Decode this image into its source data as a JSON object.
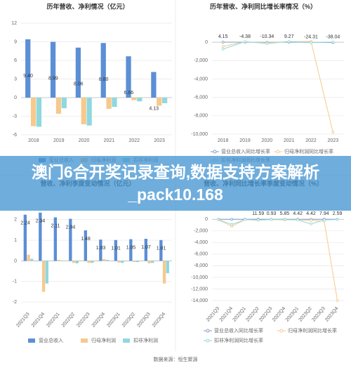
{
  "chart_data": [
    {
      "type": "bar",
      "title": "历年营收、净利情况（亿元）",
      "categories": [
        "2018",
        "2019",
        "2020",
        "2021",
        "2022",
        "2023"
      ],
      "series": [
        {
          "name": "营业总收入",
          "color": "#5b8fd6",
          "values": [
            9.4,
            8.99,
            8.06,
            8.8,
            6.66,
            4.13
          ],
          "value_labels": [
            "9.40",
            "8.99",
            "8.06",
            "8.80",
            "6.66",
            "4.13"
          ]
        },
        {
          "name": "归母净利润",
          "color": "#f6c98d",
          "values": [
            -4.6,
            -2.6,
            -4.3,
            -1.8,
            -0.4,
            -1.3
          ]
        },
        {
          "name": "扣非净利润",
          "color": "#8fd8df",
          "values": [
            -4.7,
            -1.7,
            -4.5,
            -1.5,
            -0.6,
            -0.9
          ]
        }
      ],
      "ylim": [
        -6,
        12
      ],
      "yticks": [
        12,
        9,
        6,
        3,
        0,
        -3,
        -6
      ],
      "grid": true
    },
    {
      "type": "line",
      "title": "历年营收、净利同比增长率情况（%）",
      "categories": [
        "2018",
        "2019",
        "2020",
        "2021",
        "2022",
        "2023"
      ],
      "series": [
        {
          "name": "营业总收入同比增长率",
          "color": "#7f9cc8",
          "values": [
            4.15,
            -4.38,
            -10.34,
            9.27,
            -24.31,
            -38.04
          ],
          "value_labels": [
            "4.15",
            "-4.38",
            "-10.34",
            "9.27",
            "-24.31",
            "-38.04"
          ]
        },
        {
          "name": "归母净利润同比增长率",
          "color": "#f6c98d",
          "values": [
            -450,
            40,
            -60,
            60,
            80,
            -9800
          ]
        },
        {
          "name": "扣非净利润同比增长率",
          "color": "#8fd8df",
          "values": [
            -750,
            60,
            -150,
            70,
            -40,
            20
          ]
        }
      ],
      "ylim": [
        -10000,
        1000
      ],
      "yticks": [
        0,
        {
          "value": -2000,
          "label": "-2,000"
        },
        {
          "value": -4000,
          "label": "-4,000"
        },
        {
          "value": -6000,
          "label": "-6,000"
        },
        {
          "value": -8000,
          "label": "-8,000"
        },
        {
          "value": -10000,
          "label": "-10,000"
        }
      ],
      "grid": true
    },
    {
      "type": "bar",
      "title": "营收、净利季度变动情况（亿元）",
      "categories": [
        "2021Q3",
        "2021Q4",
        "2022Q1",
        "2022Q2",
        "2022Q3",
        "2022Q4",
        "2023Q1",
        "2023Q2",
        "2023Q3",
        "2023Q4"
      ],
      "series": [
        {
          "name": "营业总收入",
          "color": "#5b8fd6",
          "values": [
            2.24,
            2.34,
            2.11,
            2.04,
            1.48,
            1.03,
            1.01,
            1.05,
            1.07,
            1.01
          ],
          "value_labels": [
            "2.24",
            "2.34",
            "2.11",
            "2.04",
            "1.48",
            "1.03",
            "1.01",
            "1.05",
            "1.07",
            "1.01"
          ]
        },
        {
          "name": "归母净利润",
          "color": "#f6c98d",
          "values": [
            0.3,
            -1.5,
            0.05,
            -0.1,
            -0.1,
            0.08,
            -0.08,
            -0.05,
            -0.12,
            -1.1
          ]
        },
        {
          "name": "扣非净利润",
          "color": "#8fd8df",
          "values": [
            0.1,
            -1.1,
            0.02,
            -0.12,
            -0.1,
            0.05,
            -0.1,
            -0.06,
            -0.1,
            -0.6
          ]
        }
      ],
      "ylim": [
        -2.2,
        2.4
      ],
      "yticks": [
        2,
        1,
        0,
        -1,
        -2
      ],
      "grid": true
    },
    {
      "type": "line",
      "title": "营收、净利同比增长率季度变动情况（%）",
      "categories": [
        "2021Q3",
        "2021Q4",
        "2022Q1",
        "2022Q2",
        "2022Q3",
        "2022Q4",
        "2023Q1",
        "2023Q2",
        "2023Q3",
        "2023Q4"
      ],
      "series": [
        {
          "name": "营业总收入同比增长率",
          "color": "#7f9cc8",
          "values": [
            -3.5,
            6.2,
            8.4,
            11.59,
            0.93,
            5.85,
            4.42,
            4.42,
            7.94,
            2.59
          ],
          "value_labels": [
            null,
            null,
            null,
            "11.59",
            "0.93",
            "5.85",
            "4.42",
            "4.42",
            "7.94",
            "2.59"
          ]
        },
        {
          "name": "归母净利润同比增长率",
          "color": "#f6c98d",
          "values": [
            -100,
            -1200,
            -60,
            -150,
            -40,
            -100,
            -80,
            -200,
            -300,
            -14000
          ]
        },
        {
          "name": "扣非净利润同比增长率",
          "color": "#8fd8df",
          "values": [
            -50,
            -900,
            -40,
            -100,
            -60,
            -30,
            -100,
            -800,
            -100,
            -50
          ]
        }
      ],
      "ylim": [
        -14000,
        1000
      ],
      "yticks": [
        0,
        {
          "value": -2000,
          "label": "-2,000"
        },
        {
          "value": -4000,
          "label": "-4,000"
        },
        {
          "value": -6000,
          "label": "-6,000"
        },
        {
          "value": -8000,
          "label": "-8,000"
        },
        {
          "value": -10000,
          "label": "-10,000"
        },
        {
          "value": -12000,
          "label": "-12,000"
        },
        {
          "value": -14000,
          "label": "-14,000"
        }
      ],
      "grid": true
    }
  ],
  "banner": "澳门6合开奖记录查询,数据支持方案解析_pack10.168",
  "source": "数据来源：恒生聚源"
}
